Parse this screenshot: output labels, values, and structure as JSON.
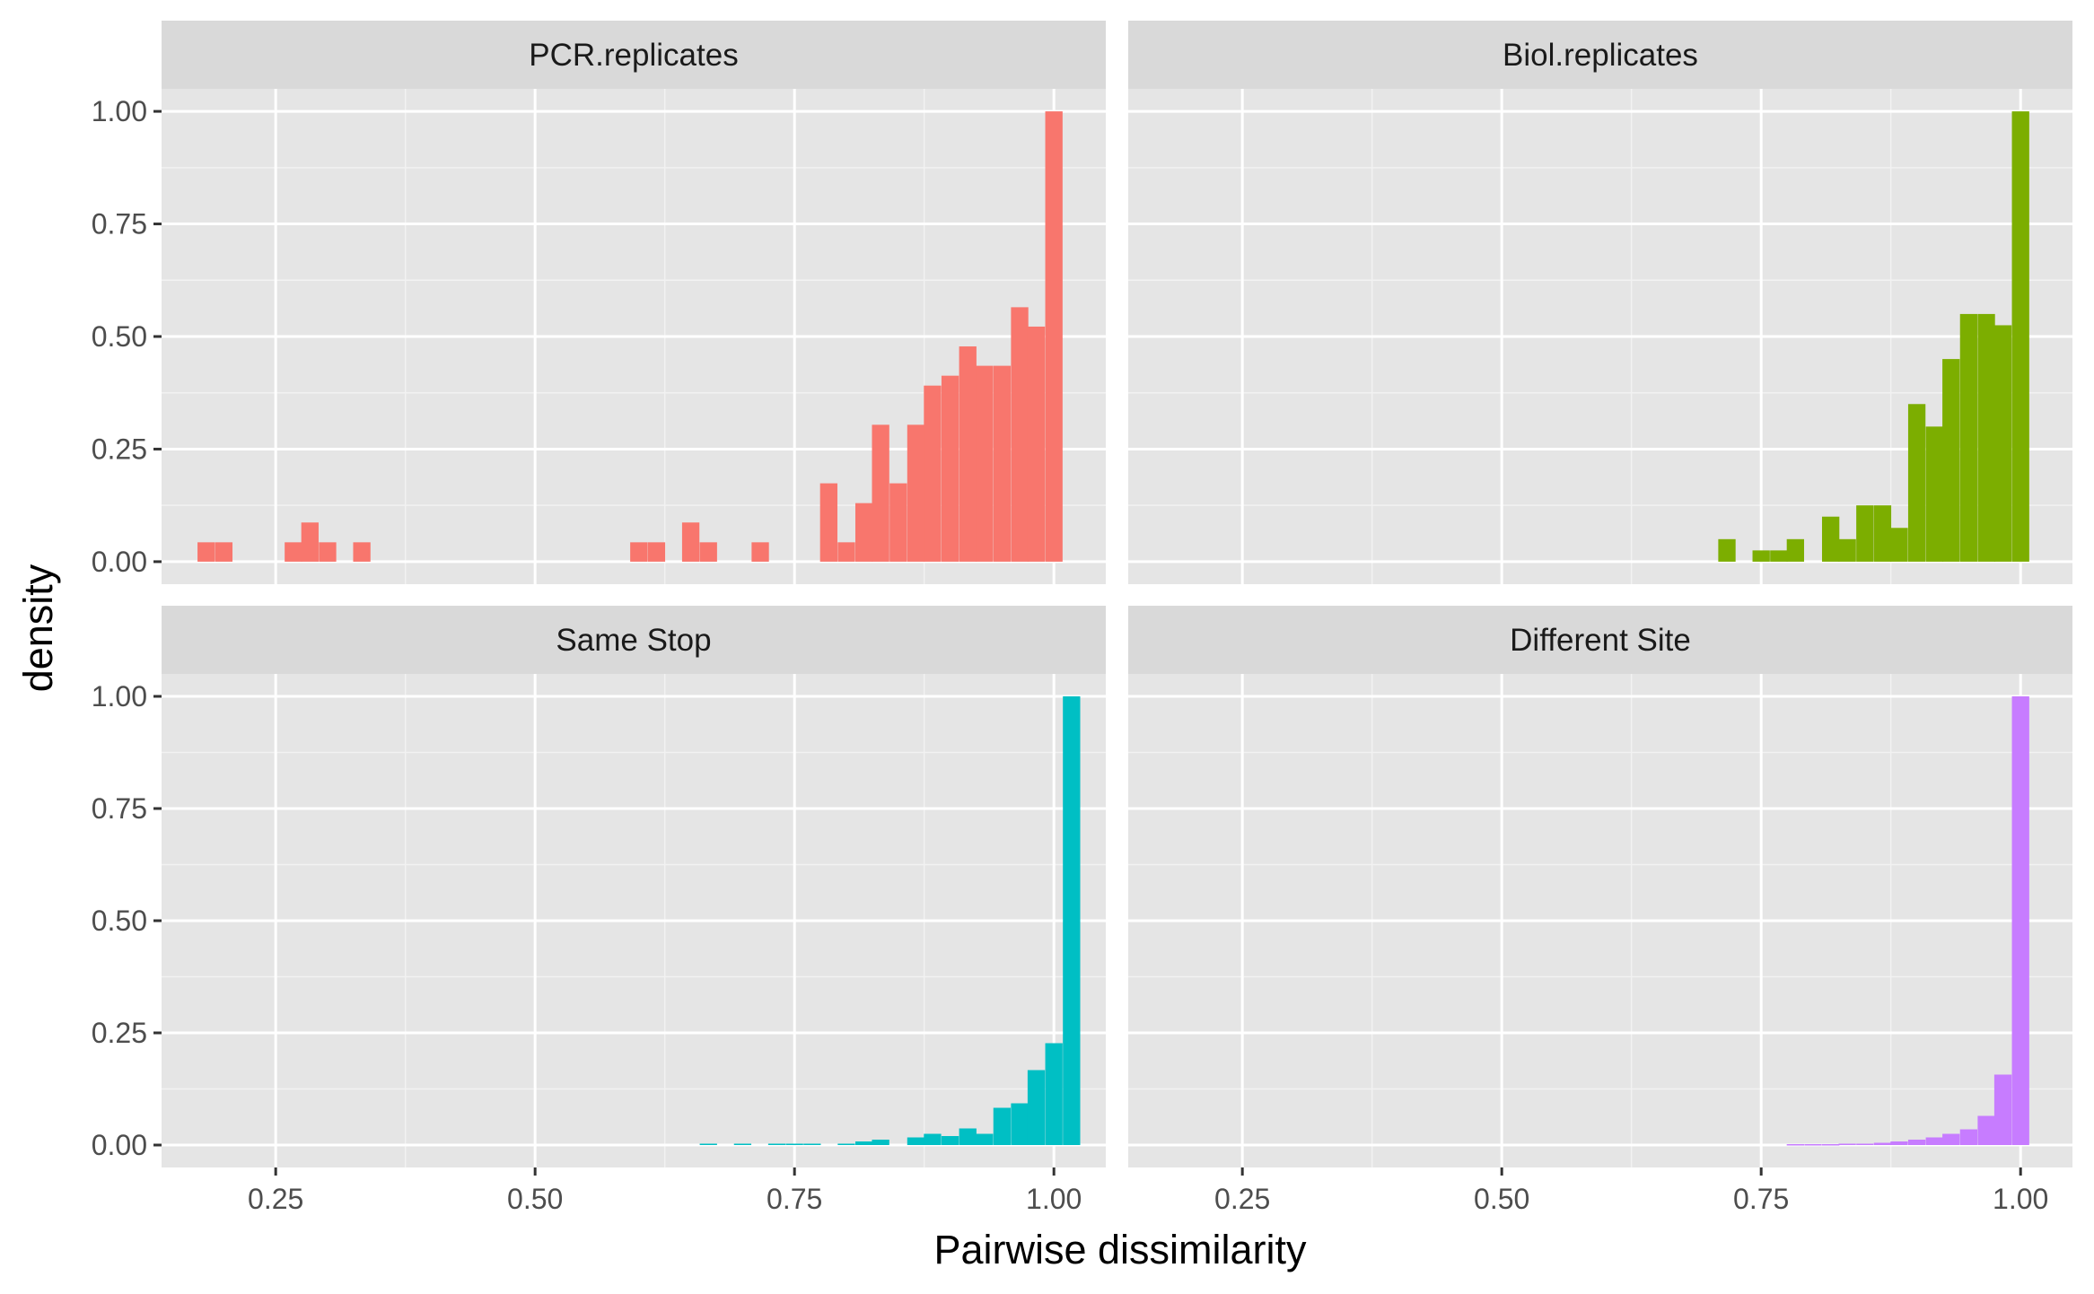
{
  "chart_data": {
    "type": "bar",
    "layout": "facet grid 2x2, shared axes",
    "xlabel": "Pairwise dissimilarity",
    "ylabel": "density",
    "xlim": [
      0.14,
      1.05
    ],
    "ylim": [
      -0.05,
      1.05
    ],
    "x_ticks": [
      "0.25",
      "0.50",
      "0.75",
      "1.00"
    ],
    "y_ticks": [
      "0.00",
      "0.25",
      "0.50",
      "0.75",
      "1.00"
    ],
    "bin_width": 0.0167,
    "grid": true,
    "legend": "none",
    "panel_background": "#e5e5e5",
    "strip_background": "#d9d9d9",
    "facets": [
      {
        "title": "PCR.replicates",
        "color": "#f8766d",
        "bins": [
          {
            "x": 0.183,
            "y": 0.043
          },
          {
            "x": 0.2,
            "y": 0.043
          },
          {
            "x": 0.267,
            "y": 0.043
          },
          {
            "x": 0.283,
            "y": 0.087
          },
          {
            "x": 0.3,
            "y": 0.043
          },
          {
            "x": 0.333,
            "y": 0.043
          },
          {
            "x": 0.6,
            "y": 0.043
          },
          {
            "x": 0.617,
            "y": 0.043
          },
          {
            "x": 0.65,
            "y": 0.087
          },
          {
            "x": 0.667,
            "y": 0.043
          },
          {
            "x": 0.717,
            "y": 0.043
          },
          {
            "x": 0.783,
            "y": 0.174
          },
          {
            "x": 0.8,
            "y": 0.043
          },
          {
            "x": 0.817,
            "y": 0.13
          },
          {
            "x": 0.833,
            "y": 0.304
          },
          {
            "x": 0.85,
            "y": 0.174
          },
          {
            "x": 0.867,
            "y": 0.304
          },
          {
            "x": 0.883,
            "y": 0.391
          },
          {
            "x": 0.9,
            "y": 0.413
          },
          {
            "x": 0.917,
            "y": 0.478
          },
          {
            "x": 0.933,
            "y": 0.435
          },
          {
            "x": 0.95,
            "y": 0.435
          },
          {
            "x": 0.967,
            "y": 0.565
          },
          {
            "x": 0.983,
            "y": 0.522
          },
          {
            "x": 1.0,
            "y": 1.0
          }
        ]
      },
      {
        "title": "Biol.replicates",
        "color": "#7cae00",
        "bins": [
          {
            "x": 0.717,
            "y": 0.05
          },
          {
            "x": 0.75,
            "y": 0.025
          },
          {
            "x": 0.767,
            "y": 0.025
          },
          {
            "x": 0.783,
            "y": 0.05
          },
          {
            "x": 0.817,
            "y": 0.1
          },
          {
            "x": 0.833,
            "y": 0.05
          },
          {
            "x": 0.85,
            "y": 0.125
          },
          {
            "x": 0.867,
            "y": 0.125
          },
          {
            "x": 0.883,
            "y": 0.075
          },
          {
            "x": 0.9,
            "y": 0.35
          },
          {
            "x": 0.917,
            "y": 0.3
          },
          {
            "x": 0.933,
            "y": 0.45
          },
          {
            "x": 0.95,
            "y": 0.55
          },
          {
            "x": 0.967,
            "y": 0.55
          },
          {
            "x": 0.983,
            "y": 0.525
          },
          {
            "x": 1.0,
            "y": 1.0
          }
        ]
      },
      {
        "title": "Same Stop",
        "color": "#00bfc4",
        "bins": [
          {
            "x": 0.667,
            "y": 0.003
          },
          {
            "x": 0.7,
            "y": 0.003
          },
          {
            "x": 0.733,
            "y": 0.003
          },
          {
            "x": 0.75,
            "y": 0.003
          },
          {
            "x": 0.767,
            "y": 0.003
          },
          {
            "x": 0.8,
            "y": 0.003
          },
          {
            "x": 0.817,
            "y": 0.008
          },
          {
            "x": 0.833,
            "y": 0.012
          },
          {
            "x": 0.867,
            "y": 0.017
          },
          {
            "x": 0.883,
            "y": 0.025
          },
          {
            "x": 0.9,
            "y": 0.02
          },
          {
            "x": 0.917,
            "y": 0.037
          },
          {
            "x": 0.933,
            "y": 0.025
          },
          {
            "x": 0.95,
            "y": 0.083
          },
          {
            "x": 0.967,
            "y": 0.093
          },
          {
            "x": 0.983,
            "y": 0.167
          },
          {
            "x": 1.0,
            "y": 0.227
          },
          {
            "x": 1.017,
            "y": 1.0
          }
        ]
      },
      {
        "title": "Different Site",
        "color": "#c77cff",
        "bins": [
          {
            "x": 0.783,
            "y": 0.002
          },
          {
            "x": 0.8,
            "y": 0.002
          },
          {
            "x": 0.817,
            "y": 0.002
          },
          {
            "x": 0.833,
            "y": 0.003
          },
          {
            "x": 0.85,
            "y": 0.003
          },
          {
            "x": 0.867,
            "y": 0.005
          },
          {
            "x": 0.883,
            "y": 0.008
          },
          {
            "x": 0.9,
            "y": 0.012
          },
          {
            "x": 0.917,
            "y": 0.017
          },
          {
            "x": 0.933,
            "y": 0.025
          },
          {
            "x": 0.95,
            "y": 0.035
          },
          {
            "x": 0.967,
            "y": 0.065
          },
          {
            "x": 0.983,
            "y": 0.157
          },
          {
            "x": 1.0,
            "y": 1.0
          }
        ]
      }
    ]
  }
}
